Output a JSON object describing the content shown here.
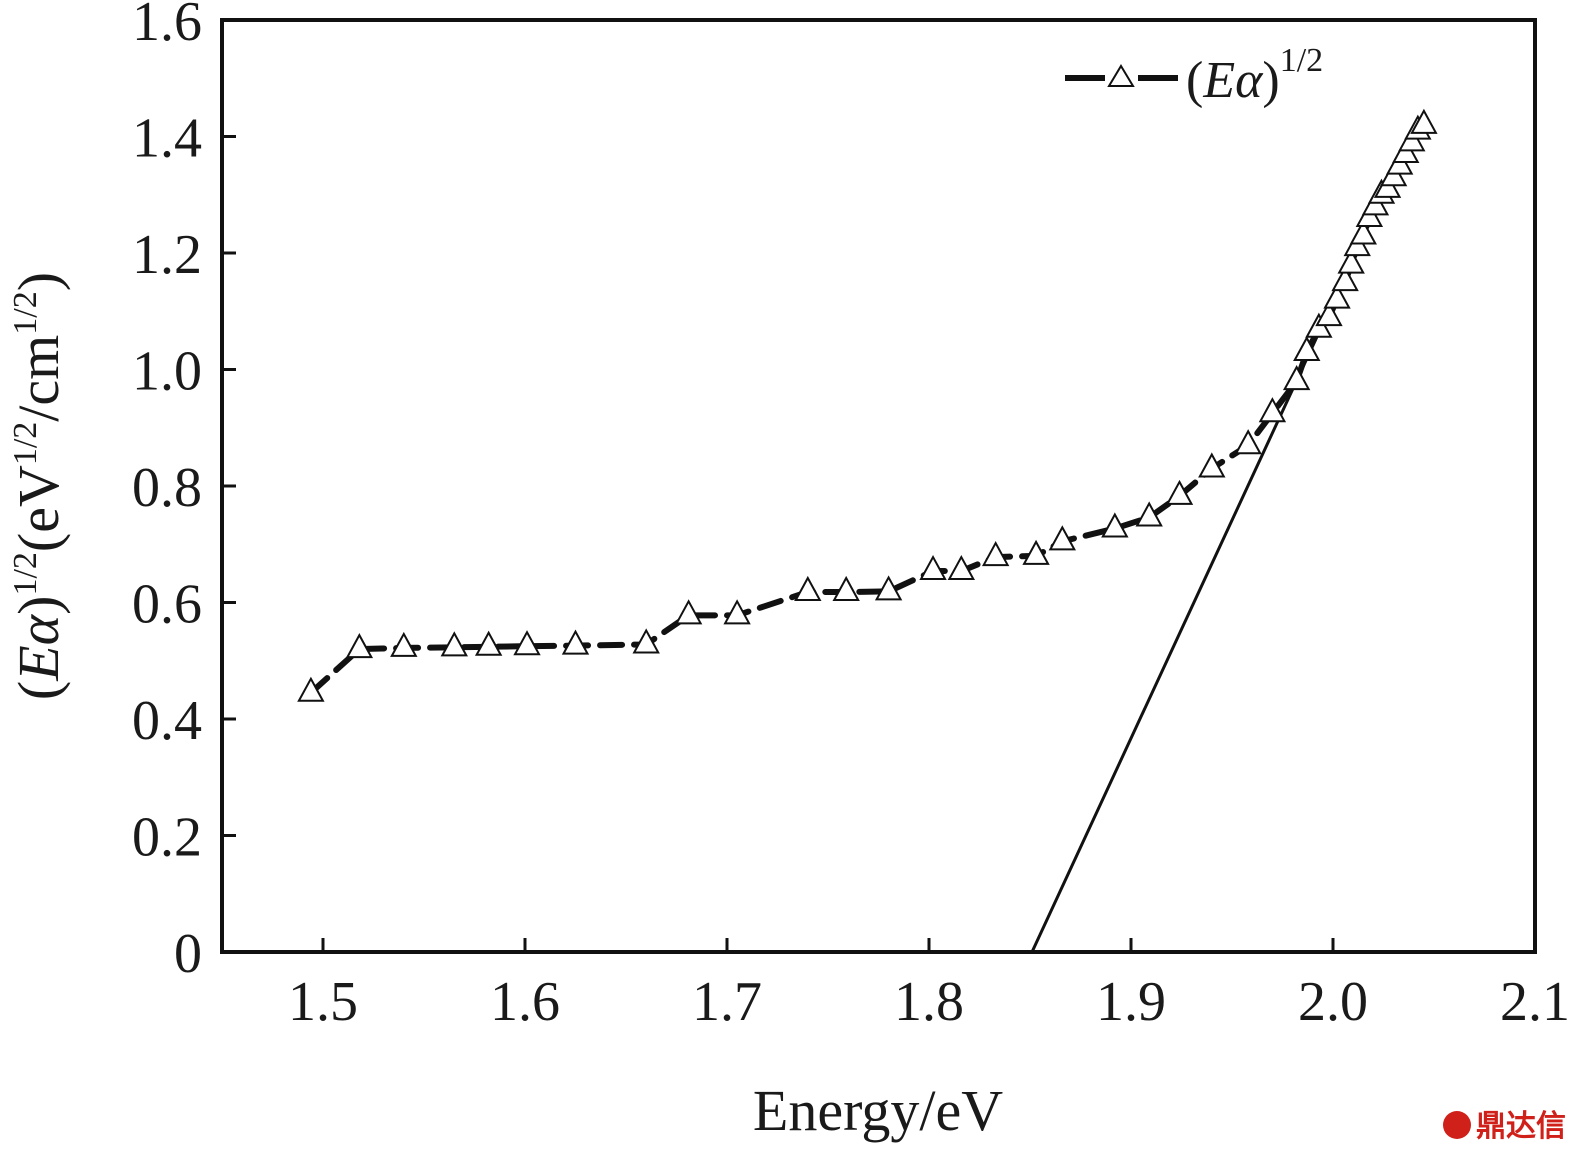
{
  "chart_data": {
    "type": "scatter",
    "title": "",
    "xlabel": "Energy/eV",
    "ylabel": {
      "open": "(",
      "var": "Eα",
      "close": ")",
      "exp1": "1/2",
      "unit_a": "(eV",
      "exp2": "1/2",
      "unit_b": "/cm",
      "exp3": "1/2",
      "unit_c": ")"
    },
    "xlim": [
      1.45,
      2.1
    ],
    "ylim": [
      0,
      1.6
    ],
    "x_ticks": [
      1.5,
      1.6,
      1.7,
      1.8,
      1.9,
      2.0,
      2.1
    ],
    "x_tick_labels": [
      "1.5",
      "1.6",
      "1.7",
      "1.8",
      "1.9",
      "2.0",
      "2.1"
    ],
    "y_ticks": [
      0,
      0.2,
      0.4,
      0.6,
      0.8,
      1.0,
      1.2,
      1.4,
      1.6
    ],
    "y_tick_labels": [
      "0",
      "0.2",
      "0.4",
      "0.6",
      "0.8",
      "1.0",
      "1.2",
      "1.4",
      "1.6"
    ],
    "grid": false,
    "legend_position": "top-right",
    "series": [
      {
        "name": "(Eα)1/2",
        "legend": {
          "open": "(",
          "var": "Eα",
          "close": ")",
          "exp": "1/2"
        },
        "marker": "open-triangle",
        "line_style": "dashed",
        "color": "#111111",
        "x": [
          1.494,
          1.518,
          1.54,
          1.565,
          1.582,
          1.601,
          1.625,
          1.66,
          1.681,
          1.705,
          1.74,
          1.759,
          1.78,
          1.802,
          1.816,
          1.833,
          1.853,
          1.866,
          1.892,
          1.909,
          1.924,
          1.94,
          1.958,
          1.97,
          1.982,
          1.987,
          1.993,
          1.998,
          2.002,
          2.006,
          2.009,
          2.012,
          2.015,
          2.018,
          2.021,
          2.024,
          2.027,
          2.03,
          2.033,
          2.036,
          2.039,
          2.042,
          2.045
        ],
        "y": [
          0.445,
          0.52,
          0.522,
          0.523,
          0.524,
          0.525,
          0.526,
          0.528,
          0.578,
          0.578,
          0.618,
          0.618,
          0.619,
          0.654,
          0.654,
          0.678,
          0.68,
          0.705,
          0.727,
          0.746,
          0.783,
          0.83,
          0.87,
          0.925,
          0.98,
          1.03,
          1.07,
          1.09,
          1.12,
          1.15,
          1.18,
          1.21,
          1.23,
          1.26,
          1.28,
          1.3,
          1.31,
          1.33,
          1.35,
          1.37,
          1.39,
          1.41,
          1.42
        ]
      },
      {
        "type": "line",
        "line_style": "solid",
        "color": "#111111",
        "x": [
          1.851,
          2.042
        ],
        "y": [
          0,
          1.43
        ]
      }
    ]
  },
  "watermark": {
    "text": "鼎达信",
    "color": "#d0201a"
  }
}
